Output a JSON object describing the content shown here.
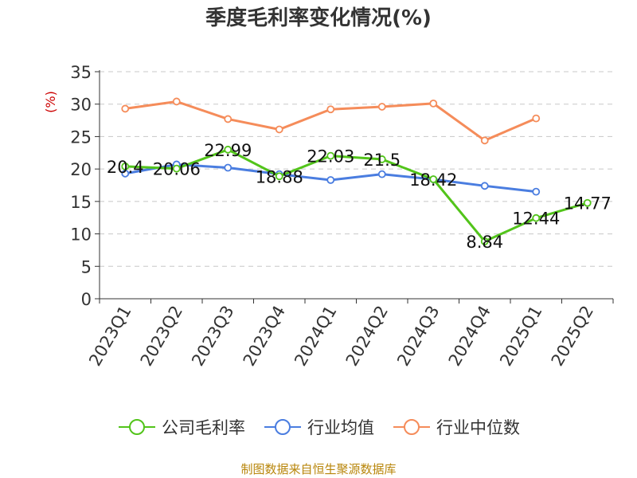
{
  "chart_data": {
    "type": "line",
    "title": "季度毛利率变化情况(%)",
    "ylabel": "(%)",
    "categories": [
      "2023Q1",
      "2023Q2",
      "2023Q3",
      "2023Q4",
      "2024Q1",
      "2024Q2",
      "2024Q3",
      "2024Q4",
      "2025Q1",
      "2025Q2"
    ],
    "ylim": [
      0,
      35
    ],
    "yticks": [
      0,
      5,
      10,
      15,
      20,
      25,
      30,
      35
    ],
    "grid": true,
    "legend_position": "bottom",
    "series": [
      {
        "name": "公司毛利率",
        "color": "#52c41a",
        "show_labels": true,
        "values": [
          20.4,
          20.06,
          22.99,
          18.88,
          22.03,
          21.5,
          18.42,
          8.84,
          12.44,
          14.77
        ]
      },
      {
        "name": "行业均值",
        "color": "#4a7de0",
        "show_labels": false,
        "values": [
          19.3,
          20.7,
          20.2,
          19.2,
          18.3,
          19.2,
          18.4,
          17.4,
          16.5,
          null
        ]
      },
      {
        "name": "行业中位数",
        "color": "#f58c5a",
        "show_labels": false,
        "values": [
          29.3,
          30.4,
          27.7,
          26.1,
          29.2,
          29.6,
          30.1,
          24.4,
          27.8,
          null
        ]
      }
    ]
  },
  "source_note": "制图数据来自恒生聚源数据库"
}
